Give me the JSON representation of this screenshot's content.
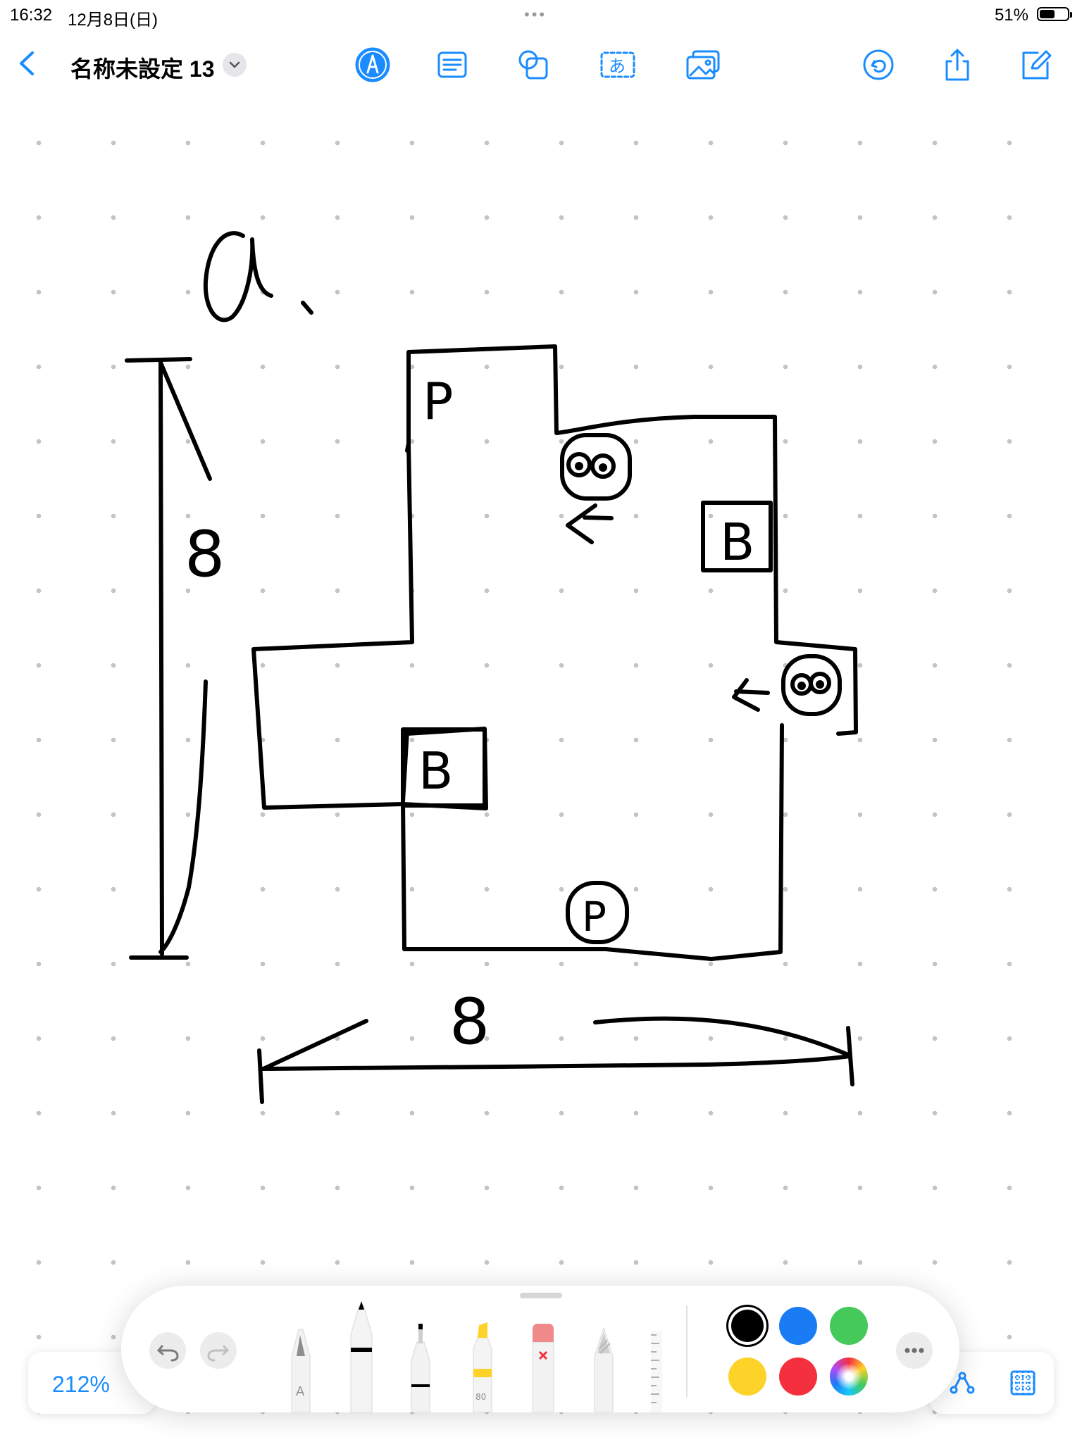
{
  "status_bar": {
    "time": "16:32",
    "date": "12月8日(日)",
    "dots": "•••",
    "battery_percent": "51%",
    "battery_level": 0.51
  },
  "nav": {
    "back_icon": "chevron-left-icon",
    "title": "名称未設定 13",
    "title_menu_icon": "chevron-down-icon",
    "tools": [
      "pen-tool-icon",
      "text-box-icon",
      "shapes-icon",
      "text-icon",
      "media-icon"
    ],
    "actions": [
      "collaborate-icon",
      "share-icon",
      "compose-icon"
    ],
    "text_tool_glyph": "あ"
  },
  "sketch": {
    "label_a": "a",
    "dim_vertical": "8",
    "dim_horizontal": "8",
    "labels_p": [
      "P",
      "P"
    ],
    "labels_b": [
      "B",
      "B"
    ],
    "arrow_glyph": "←"
  },
  "toolbar": {
    "undo_icon": "undo-icon",
    "redo_icon": "redo-icon",
    "pens": [
      "monoline-pen",
      "marker-pen",
      "fineliner-pen",
      "highlighter",
      "eraser",
      "pencil",
      "ruler"
    ],
    "monoline_label": "A",
    "highlighter_label": "80",
    "more_icon": "ellipsis-icon",
    "colors": [
      "#000000",
      "#1a7cf5",
      "#45c95b",
      "#fdd229",
      "#f5303e",
      "color-wheel"
    ],
    "selected_color": "#000000"
  },
  "zoom": {
    "label": "212%"
  },
  "bottom_right": [
    "lasso-shape-icon",
    "grid-icon"
  ]
}
